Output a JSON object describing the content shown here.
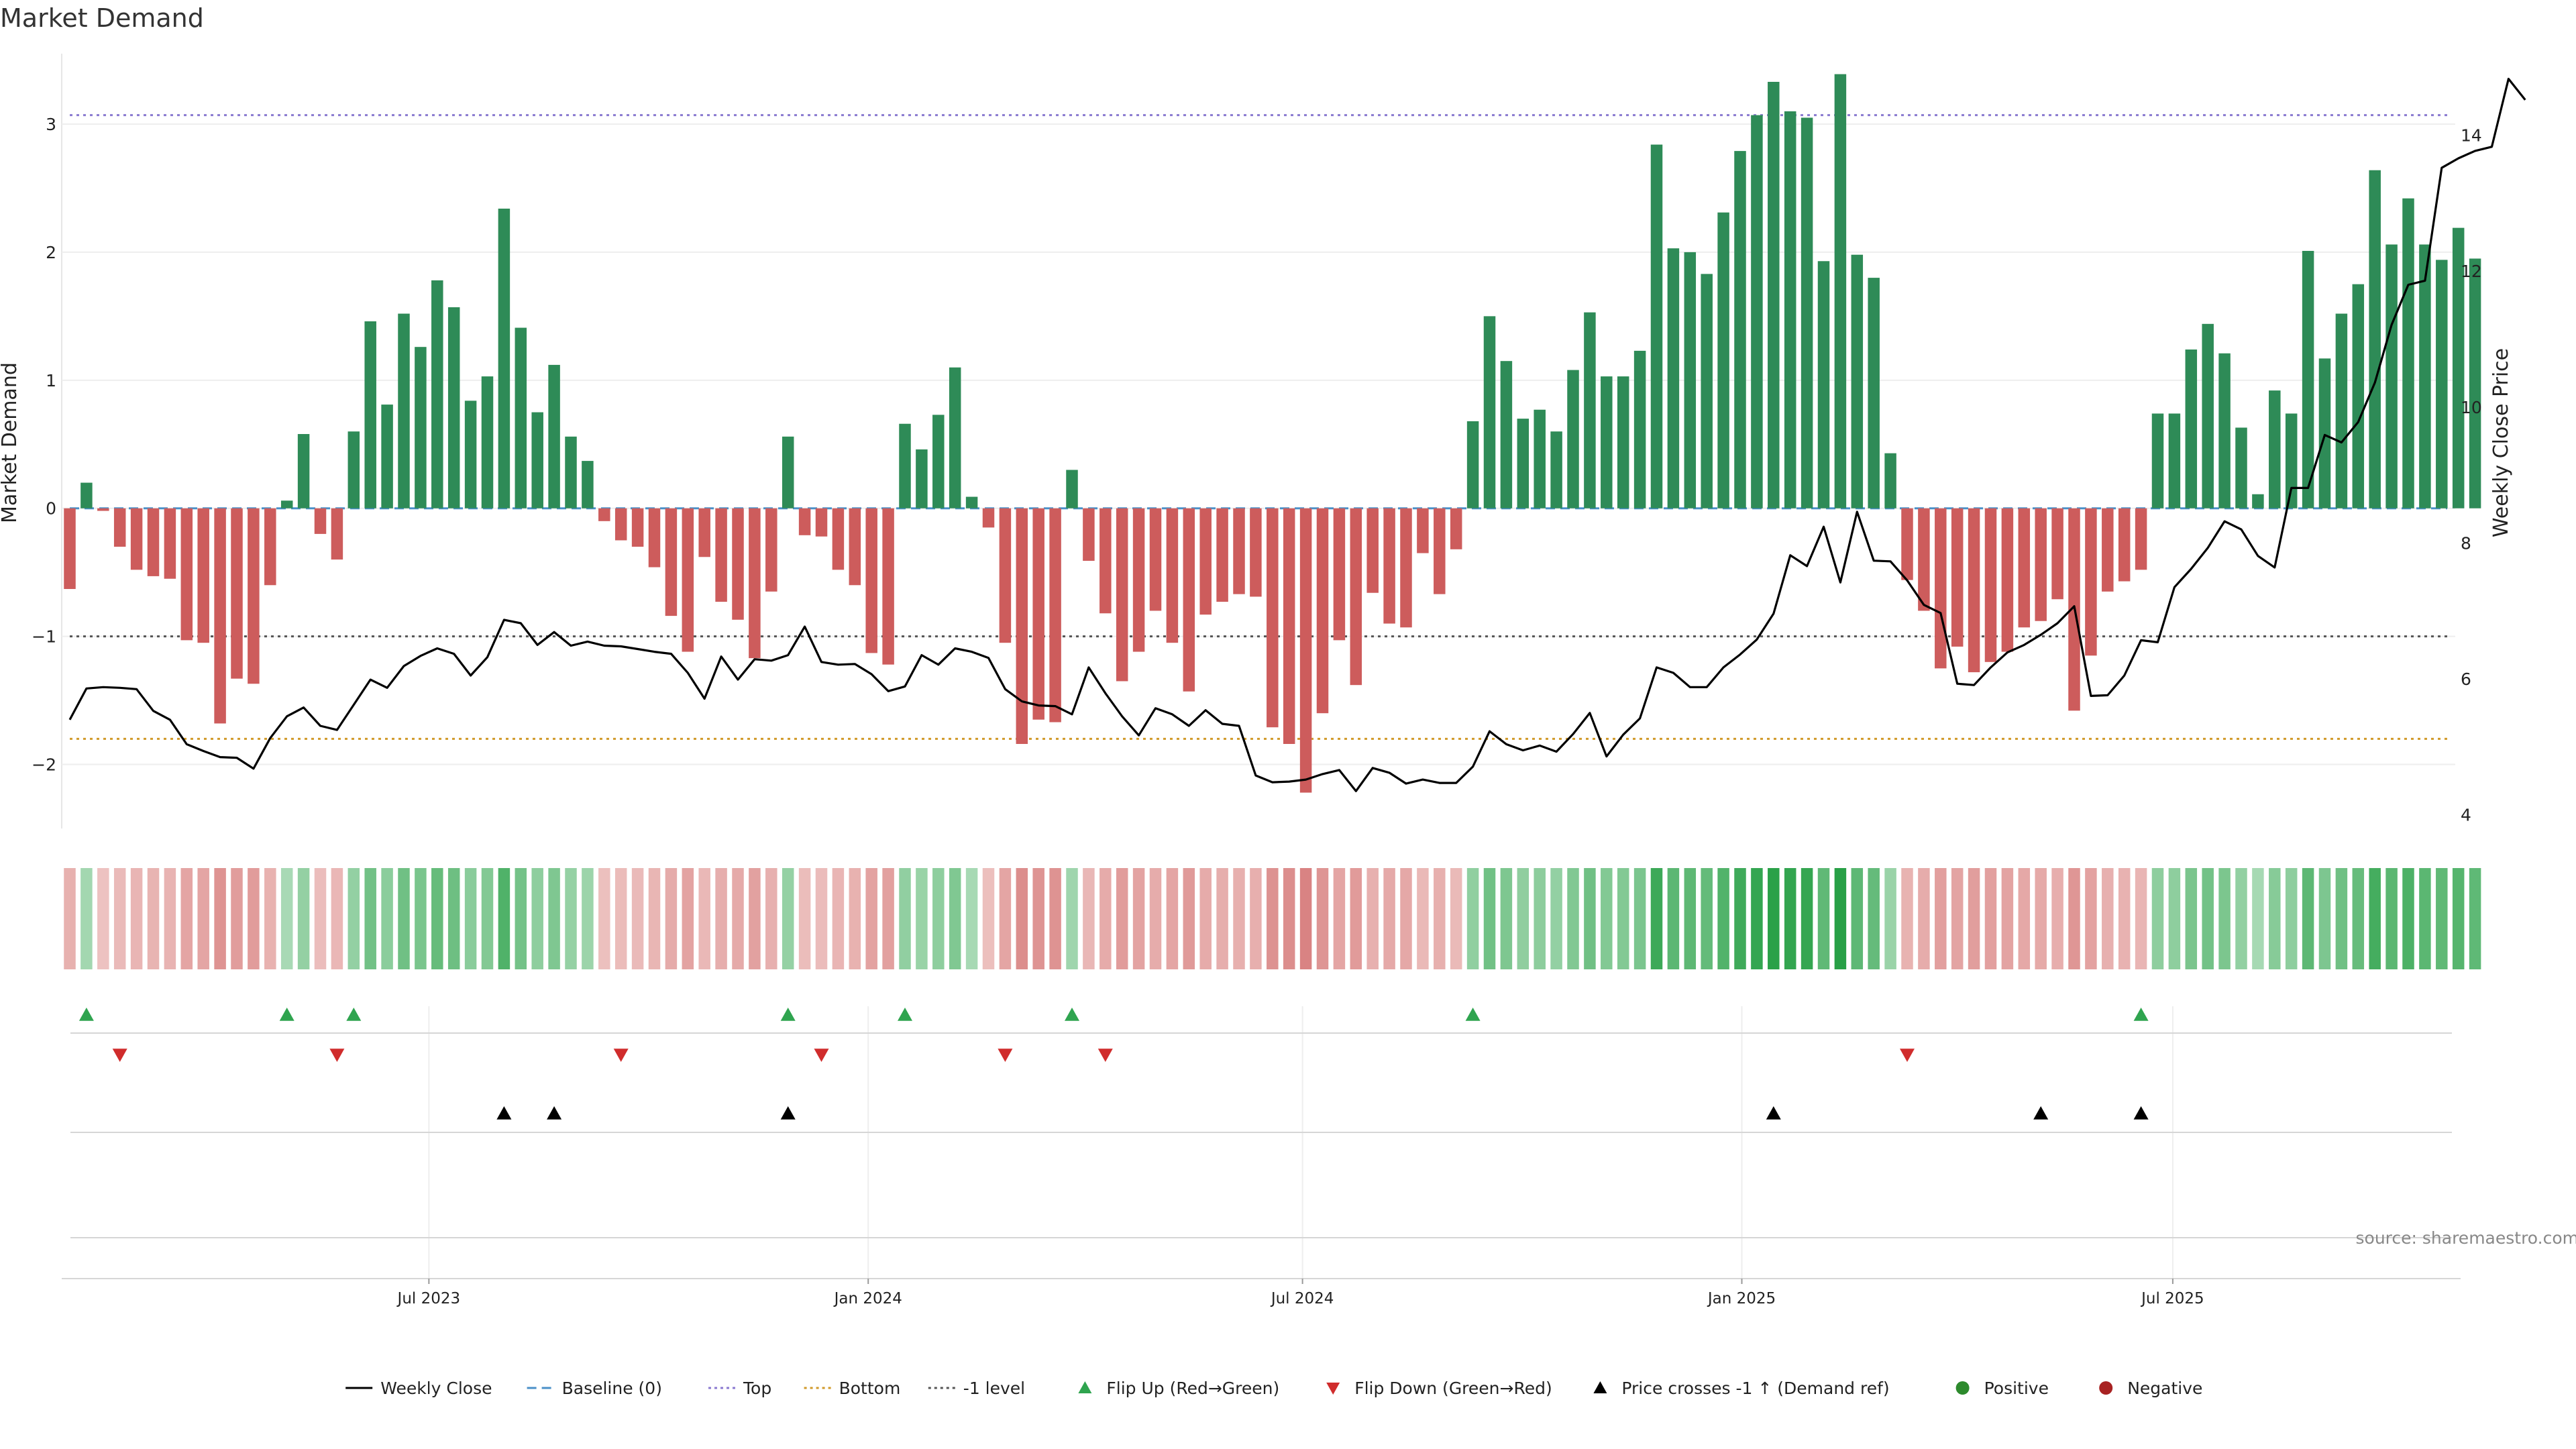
{
  "chart_data": {
    "type": "bar",
    "title": "Market Demand",
    "ylabel": "Market Demand",
    "ylabel_right": "Weekly Close Price",
    "ylim": [
      -2.5,
      3.55
    ],
    "ylim_right": [
      3.8,
      15.2
    ],
    "yticks": [
      3,
      2,
      1,
      0,
      -1,
      -2
    ],
    "yticks_right": [
      14,
      12,
      10,
      8,
      6,
      4
    ],
    "reference_lines": {
      "top": 3.07,
      "bottom": -1.8,
      "minus_one": -1,
      "baseline": 0
    },
    "x_tick_labels": [
      "Jul 2023",
      "Jan 2024",
      "Jul 2024",
      "Jan 2025",
      "Jul 2025"
    ],
    "x_tick_weeks": [
      21.5,
      47.8,
      73.8,
      100.1,
      125.9
    ],
    "demand": [
      -0.63,
      0.2,
      -0.02,
      -0.3,
      -0.48,
      -0.53,
      -0.55,
      -1.03,
      -1.05,
      -1.68,
      -1.33,
      -1.37,
      -0.6,
      0.06,
      0.58,
      -0.2,
      -0.4,
      0.6,
      1.46,
      0.81,
      1.52,
      1.26,
      1.78,
      1.57,
      0.84,
      1.03,
      2.34,
      1.41,
      0.75,
      1.12,
      0.56,
      0.37,
      -0.1,
      -0.25,
      -0.3,
      -0.46,
      -0.84,
      -1.12,
      -0.38,
      -0.73,
      -0.87,
      -1.17,
      -0.65,
      0.56,
      -0.21,
      -0.22,
      -0.48,
      -0.6,
      -1.13,
      -1.22,
      0.66,
      0.46,
      0.73,
      1.1,
      0.09,
      -0.15,
      -1.05,
      -1.84,
      -1.65,
      -1.67,
      0.3,
      -0.41,
      -0.82,
      -1.35,
      -1.12,
      -0.8,
      -1.05,
      -1.43,
      -0.83,
      -0.73,
      -0.67,
      -0.69,
      -1.71,
      -1.84,
      -2.22,
      -1.6,
      -1.03,
      -1.38,
      -0.66,
      -0.9,
      -0.93,
      -0.35,
      -0.67,
      -0.32,
      0.68,
      1.5,
      1.15,
      0.7,
      0.77,
      0.6,
      1.08,
      1.53,
      1.03,
      1.03,
      1.23,
      2.84,
      2.03,
      2.0,
      1.83,
      2.31,
      2.79,
      3.07,
      3.33,
      3.1,
      3.05,
      1.93,
      3.39,
      1.98,
      1.8,
      0.43,
      -0.56,
      -0.8,
      -1.25,
      -1.08,
      -1.28,
      -1.2,
      -1.12,
      -0.93,
      -0.88,
      -0.71,
      -1.58,
      -1.15,
      -0.65,
      -0.57,
      -0.48,
      0.74,
      0.74,
      1.24,
      1.44,
      1.21,
      0.63,
      0.11,
      0.92,
      0.74,
      2.01,
      1.17,
      1.52,
      1.75,
      2.64,
      2.06,
      2.42,
      2.06,
      1.94,
      2.19,
      1.95
    ],
    "weekly_close": [
      5.4,
      5.86,
      5.88,
      5.87,
      5.85,
      5.53,
      5.4,
      5.04,
      4.94,
      4.85,
      4.84,
      4.68,
      5.13,
      5.45,
      5.58,
      5.31,
      5.25,
      5.62,
      5.99,
      5.87,
      6.19,
      6.34,
      6.45,
      6.37,
      6.05,
      6.32,
      6.87,
      6.82,
      6.5,
      6.69,
      6.49,
      6.55,
      6.49,
      6.48,
      6.44,
      6.4,
      6.37,
      6.09,
      5.71,
      6.33,
      5.99,
      6.29,
      6.27,
      6.35,
      6.77,
      6.25,
      6.21,
      6.22,
      6.07,
      5.82,
      5.89,
      6.35,
      6.21,
      6.45,
      6.4,
      6.31,
      5.85,
      5.67,
      5.61,
      5.6,
      5.48,
      6.17,
      5.79,
      5.45,
      5.17,
      5.57,
      5.48,
      5.31,
      5.54,
      5.34,
      5.31,
      4.58,
      4.48,
      4.49,
      4.52,
      4.6,
      4.66,
      4.35,
      4.69,
      4.62,
      4.46,
      4.52,
      4.47,
      4.47,
      4.71,
      5.23,
      5.04,
      4.95,
      5.02,
      4.93,
      5.19,
      5.5,
      4.86,
      5.18,
      5.42,
      6.17,
      6.09,
      5.88,
      5.88,
      6.17,
      6.36,
      6.58,
      6.96,
      7.82,
      7.66,
      8.24,
      7.42,
      8.46,
      7.74,
      7.73,
      7.45,
      7.09,
      6.97,
      5.93,
      5.91,
      6.17,
      6.39,
      6.5,
      6.65,
      6.82,
      7.07,
      5.75,
      5.76,
      6.05,
      6.57,
      6.54,
      7.35,
      7.62,
      7.93,
      8.32,
      8.2,
      7.81,
      7.64,
      8.81,
      8.81,
      9.59,
      9.48,
      9.78,
      10.36,
      11.21,
      11.8,
      11.86,
      13.52,
      13.66,
      13.77,
      13.83,
      14.83,
      14.52
    ],
    "strength_strip": {
      "description": "per-week tile shaded green when demand is positive and red when negative; depth follows the demand magnitude"
    },
    "flip_up_weeks": [
      1,
      13,
      17,
      43,
      50,
      60,
      84,
      124
    ],
    "flip_down_weeks": [
      3,
      16,
      33,
      45,
      56,
      62,
      110
    ],
    "price_cross_weeks": [
      26,
      29,
      43,
      102,
      118,
      124
    ],
    "legend": [
      {
        "label": "Weekly Close",
        "kind": "line",
        "color": "#000000"
      },
      {
        "label": "Baseline (0)",
        "kind": "dash",
        "color": "#4a90c8"
      },
      {
        "label": "Top",
        "kind": "dot",
        "color": "#8a7ad0"
      },
      {
        "label": "Bottom",
        "kind": "dot",
        "color": "#d19a2a"
      },
      {
        "label": "-1 level",
        "kind": "dot",
        "color": "#555555"
      },
      {
        "label": "Flip Up (Red→Green)",
        "kind": "tri-up",
        "color": "#2fa44f"
      },
      {
        "label": "Flip Down (Green→Red)",
        "kind": "tri-down",
        "color": "#d02c2c"
      },
      {
        "label": "Price crosses -1 ↑ (Demand ref)",
        "kind": "tri-up",
        "color": "#000000"
      },
      {
        "label": "Positive",
        "kind": "circle",
        "color": "#2d8a2d"
      },
      {
        "label": "Negative",
        "kind": "circle",
        "color": "#a82222"
      }
    ],
    "colors": {
      "positive_bar": "#2e8b57",
      "negative_bar": "#cd5c5c",
      "top_line": "#8a7ad0",
      "bottom_line": "#d19a2a",
      "minus_one_line": "#555555",
      "baseline": "#4a90c8"
    }
  },
  "source": "source: sharemaestro.com"
}
